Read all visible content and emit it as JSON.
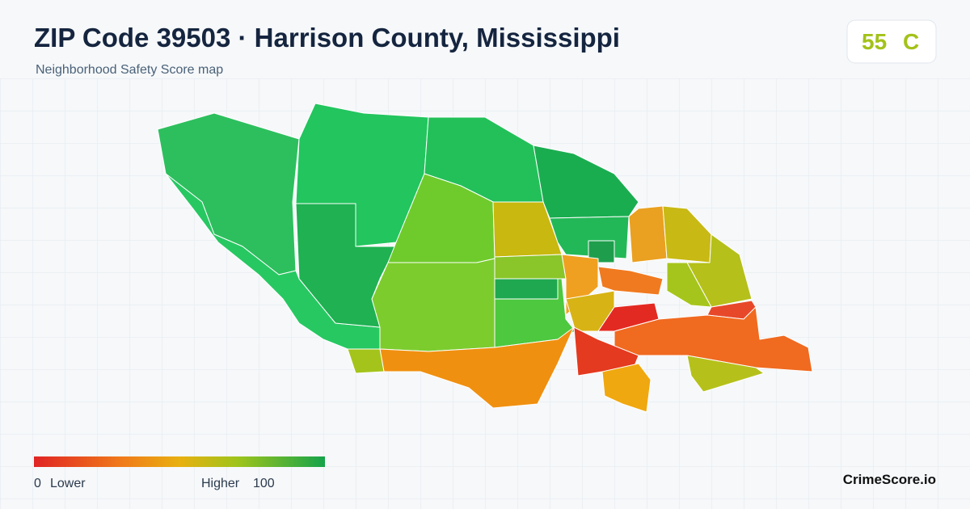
{
  "header": {
    "title": "ZIP Code 39503 · Harrison County, Mississippi",
    "subtitle": "Neighborhood Safety Score map"
  },
  "score": {
    "value": 55,
    "grade": "C"
  },
  "legend": {
    "min": 0,
    "min_label": "Lower",
    "max_label": "Higher",
    "max": 100
  },
  "brand": "CrimeScore.io"
}
